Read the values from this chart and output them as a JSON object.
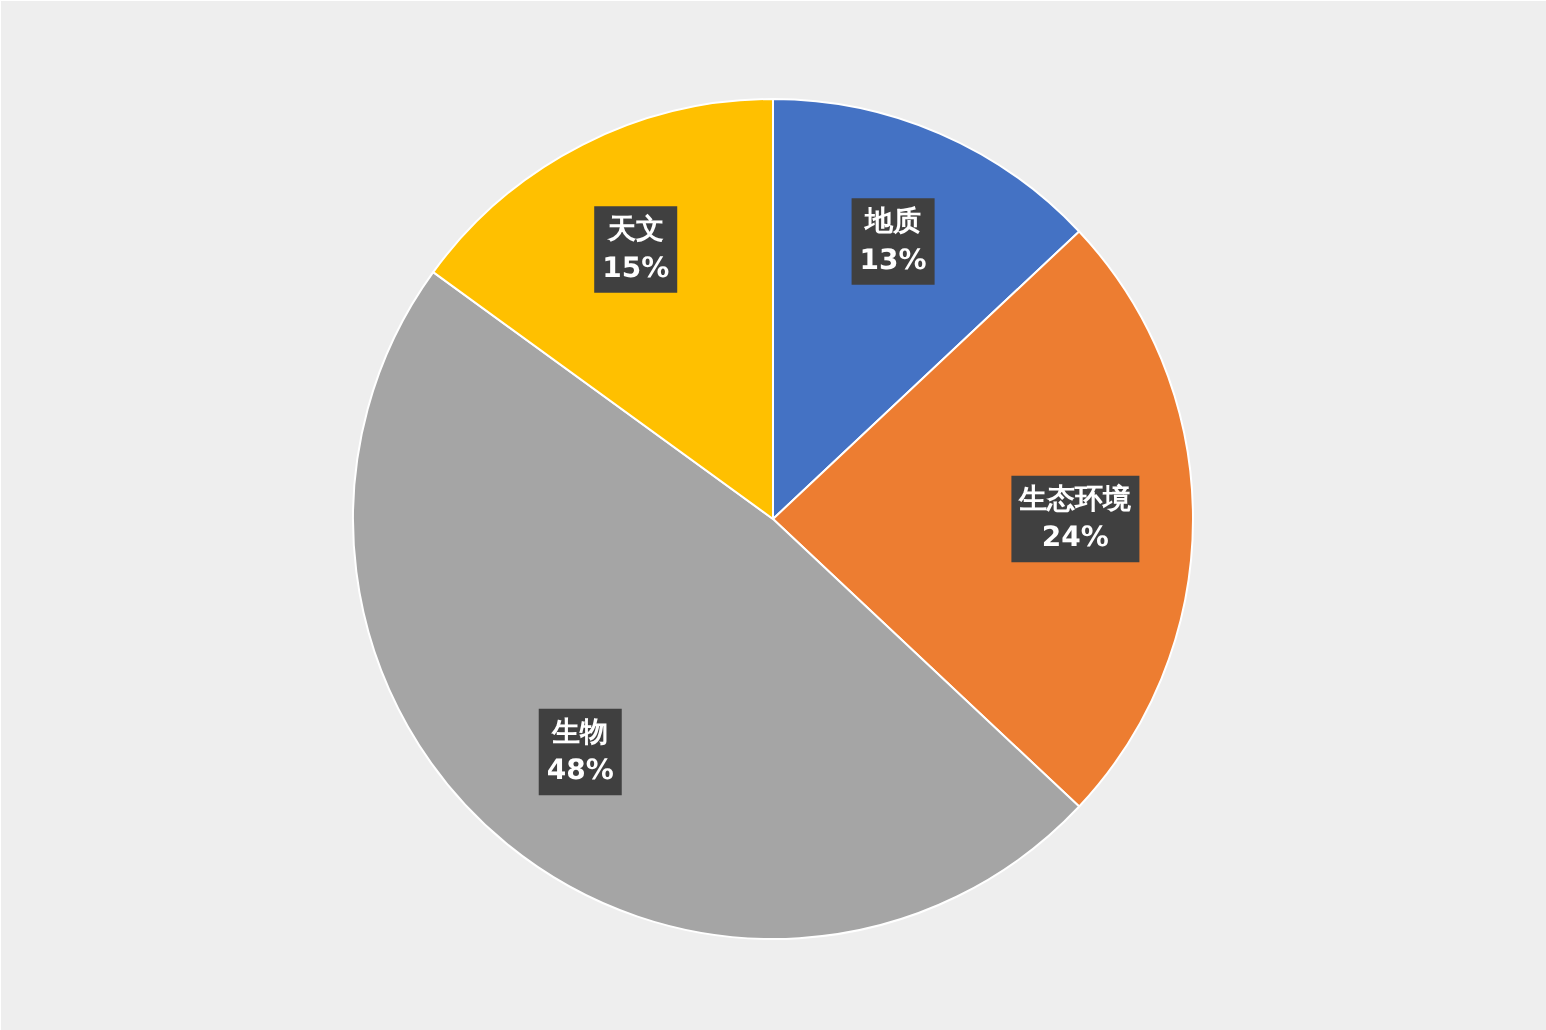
{
  "chart_data": {
    "type": "pie",
    "categories": [
      "地质",
      "生态环境",
      "生物",
      "天文"
    ],
    "values": [
      13,
      24,
      48,
      15
    ],
    "colors": [
      "#4472c4",
      "#ed7d31",
      "#a5a5a5",
      "#ffc000"
    ],
    "value_labels": [
      "13%",
      "24%",
      "48%",
      "15%"
    ]
  }
}
